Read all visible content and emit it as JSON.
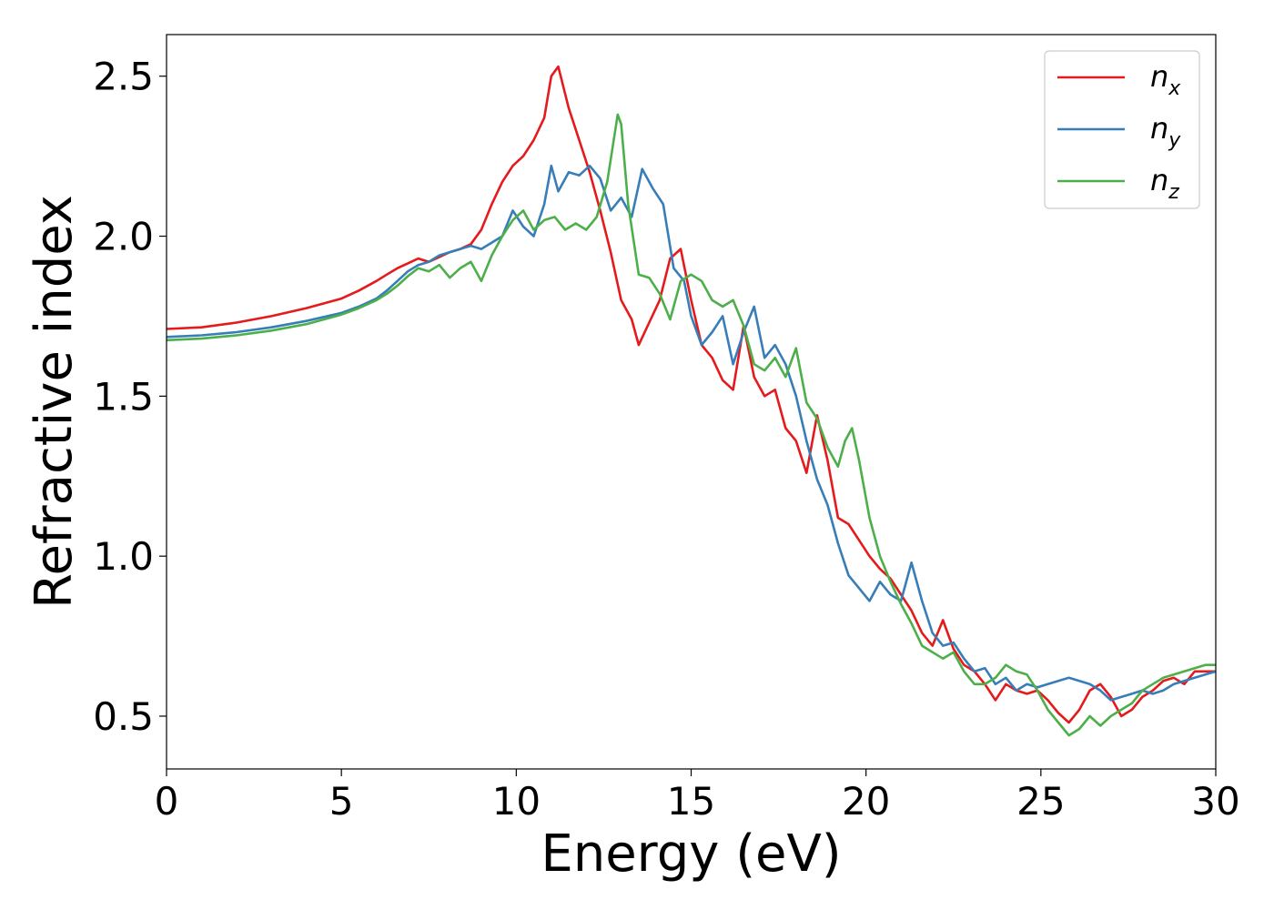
{
  "chart_data": {
    "type": "line",
    "title": "",
    "xlabel": "Energy (eV)",
    "ylabel": "Refractive index",
    "xlim": [
      0,
      30
    ],
    "ylim": [
      0.335,
      2.63
    ],
    "xticks": [
      0,
      5,
      10,
      15,
      20,
      25,
      30
    ],
    "xtick_labels": [
      "0",
      "5",
      "10",
      "15",
      "20",
      "25",
      "30"
    ],
    "yticks": [
      0.5,
      1.0,
      1.5,
      2.0,
      2.5
    ],
    "ytick_labels": [
      "0.5",
      "1.0",
      "1.5",
      "2.0",
      "2.5"
    ],
    "grid": false,
    "legend_position": "top-right",
    "series": [
      {
        "name": "n_x",
        "label_base": "n",
        "label_sub": "x",
        "color": "#e41a1c",
        "x": [
          0,
          1,
          2,
          3,
          4,
          5,
          5.5,
          6,
          6.3,
          6.6,
          6.9,
          7.2,
          7.5,
          7.8,
          8.1,
          8.4,
          8.7,
          9.0,
          9.3,
          9.6,
          9.9,
          10.2,
          10.5,
          10.8,
          11.0,
          11.2,
          11.5,
          11.8,
          12.1,
          12.4,
          12.7,
          13.0,
          13.3,
          13.5,
          13.8,
          14.1,
          14.4,
          14.7,
          15.0,
          15.3,
          15.6,
          15.9,
          16.2,
          16.5,
          16.8,
          17.1,
          17.4,
          17.7,
          18.0,
          18.3,
          18.6,
          18.9,
          19.2,
          19.5,
          19.8,
          20.1,
          20.4,
          20.7,
          21.0,
          21.3,
          21.6,
          21.9,
          22.2,
          22.5,
          22.8,
          23.1,
          23.4,
          23.7,
          24.0,
          24.3,
          24.6,
          24.9,
          25.2,
          25.5,
          25.8,
          26.1,
          26.4,
          26.7,
          27.0,
          27.3,
          27.6,
          27.9,
          28.2,
          28.5,
          28.8,
          29.1,
          29.4,
          29.7,
          30.0
        ],
        "y": [
          1.71,
          1.715,
          1.73,
          1.75,
          1.775,
          1.805,
          1.83,
          1.86,
          1.88,
          1.9,
          1.915,
          1.93,
          1.92,
          1.935,
          1.95,
          1.96,
          1.975,
          2.02,
          2.1,
          2.17,
          2.22,
          2.25,
          2.3,
          2.37,
          2.5,
          2.53,
          2.4,
          2.3,
          2.2,
          2.08,
          1.95,
          1.8,
          1.74,
          1.66,
          1.73,
          1.8,
          1.93,
          1.96,
          1.8,
          1.66,
          1.62,
          1.55,
          1.52,
          1.72,
          1.56,
          1.5,
          1.52,
          1.4,
          1.36,
          1.26,
          1.44,
          1.3,
          1.12,
          1.1,
          1.05,
          1.0,
          0.96,
          0.93,
          0.88,
          0.83,
          0.76,
          0.72,
          0.8,
          0.71,
          0.66,
          0.64,
          0.6,
          0.55,
          0.6,
          0.58,
          0.57,
          0.58,
          0.55,
          0.51,
          0.48,
          0.52,
          0.58,
          0.6,
          0.56,
          0.5,
          0.52,
          0.56,
          0.58,
          0.61,
          0.62,
          0.6,
          0.64,
          0.64,
          0.64
        ]
      },
      {
        "name": "n_y",
        "label_base": "n",
        "label_sub": "y",
        "color": "#377eb8",
        "x": [
          0,
          1,
          2,
          3,
          4,
          5,
          5.5,
          6,
          6.3,
          6.6,
          6.9,
          7.2,
          7.5,
          7.8,
          8.1,
          8.4,
          8.7,
          9.0,
          9.3,
          9.6,
          9.9,
          10.2,
          10.5,
          10.8,
          11.0,
          11.2,
          11.5,
          11.8,
          12.1,
          12.4,
          12.7,
          13.0,
          13.3,
          13.6,
          13.9,
          14.2,
          14.5,
          14.8,
          15.0,
          15.3,
          15.6,
          15.9,
          16.2,
          16.5,
          16.8,
          17.1,
          17.4,
          17.7,
          18.0,
          18.3,
          18.6,
          18.9,
          19.2,
          19.5,
          19.8,
          20.1,
          20.4,
          20.7,
          21.0,
          21.3,
          21.6,
          21.9,
          22.2,
          22.5,
          22.8,
          23.1,
          23.4,
          23.7,
          24.0,
          24.3,
          24.6,
          24.9,
          25.2,
          25.5,
          25.8,
          26.1,
          26.4,
          26.7,
          27.0,
          27.3,
          27.6,
          27.9,
          28.2,
          28.5,
          28.8,
          29.1,
          29.4,
          29.7,
          30.0
        ],
        "y": [
          1.685,
          1.69,
          1.7,
          1.715,
          1.735,
          1.76,
          1.78,
          1.805,
          1.83,
          1.86,
          1.89,
          1.91,
          1.92,
          1.94,
          1.95,
          1.96,
          1.97,
          1.96,
          1.98,
          2.0,
          2.08,
          2.03,
          2.0,
          2.1,
          2.22,
          2.14,
          2.2,
          2.19,
          2.22,
          2.18,
          2.08,
          2.12,
          2.06,
          2.21,
          2.15,
          2.1,
          1.9,
          1.86,
          1.75,
          1.66,
          1.7,
          1.75,
          1.6,
          1.7,
          1.78,
          1.62,
          1.66,
          1.6,
          1.5,
          1.36,
          1.24,
          1.16,
          1.04,
          0.94,
          0.9,
          0.86,
          0.92,
          0.88,
          0.86,
          0.98,
          0.86,
          0.76,
          0.72,
          0.73,
          0.68,
          0.64,
          0.65,
          0.6,
          0.62,
          0.58,
          0.6,
          0.59,
          0.6,
          0.61,
          0.62,
          0.61,
          0.6,
          0.58,
          0.55,
          0.56,
          0.57,
          0.58,
          0.57,
          0.58,
          0.6,
          0.61,
          0.62,
          0.63,
          0.64
        ]
      },
      {
        "name": "n_z",
        "label_base": "n",
        "label_sub": "z",
        "color": "#4daf4a",
        "x": [
          0,
          1,
          2,
          3,
          4,
          5,
          5.5,
          6,
          6.3,
          6.6,
          6.9,
          7.2,
          7.5,
          7.8,
          8.1,
          8.4,
          8.7,
          9.0,
          9.3,
          9.6,
          9.9,
          10.2,
          10.5,
          10.8,
          11.1,
          11.4,
          11.7,
          12.0,
          12.3,
          12.6,
          12.9,
          13.0,
          13.2,
          13.5,
          13.8,
          14.1,
          14.4,
          14.7,
          15.0,
          15.3,
          15.6,
          15.9,
          16.2,
          16.5,
          16.8,
          17.1,
          17.4,
          17.7,
          18.0,
          18.3,
          18.6,
          18.9,
          19.2,
          19.4,
          19.6,
          19.8,
          20.1,
          20.4,
          20.7,
          21.0,
          21.3,
          21.6,
          21.9,
          22.2,
          22.5,
          22.8,
          23.1,
          23.4,
          23.7,
          24.0,
          24.3,
          24.6,
          24.9,
          25.2,
          25.5,
          25.8,
          26.1,
          26.4,
          26.7,
          27.0,
          27.3,
          27.6,
          27.9,
          28.2,
          28.5,
          28.8,
          29.1,
          29.4,
          29.7,
          30.0
        ],
        "y": [
          1.675,
          1.68,
          1.69,
          1.705,
          1.725,
          1.755,
          1.775,
          1.8,
          1.82,
          1.845,
          1.875,
          1.9,
          1.89,
          1.91,
          1.87,
          1.9,
          1.92,
          1.86,
          1.94,
          2.0,
          2.05,
          2.08,
          2.02,
          2.05,
          2.06,
          2.02,
          2.04,
          2.02,
          2.06,
          2.17,
          2.38,
          2.35,
          2.1,
          1.88,
          1.87,
          1.82,
          1.74,
          1.86,
          1.88,
          1.86,
          1.8,
          1.78,
          1.8,
          1.72,
          1.6,
          1.58,
          1.62,
          1.56,
          1.65,
          1.48,
          1.43,
          1.34,
          1.28,
          1.36,
          1.4,
          1.3,
          1.12,
          1.0,
          0.92,
          0.85,
          0.79,
          0.72,
          0.7,
          0.68,
          0.7,
          0.64,
          0.6,
          0.6,
          0.62,
          0.66,
          0.64,
          0.63,
          0.58,
          0.52,
          0.48,
          0.44,
          0.46,
          0.5,
          0.47,
          0.5,
          0.52,
          0.54,
          0.58,
          0.6,
          0.62,
          0.63,
          0.64,
          0.65,
          0.66,
          0.66
        ]
      }
    ]
  }
}
